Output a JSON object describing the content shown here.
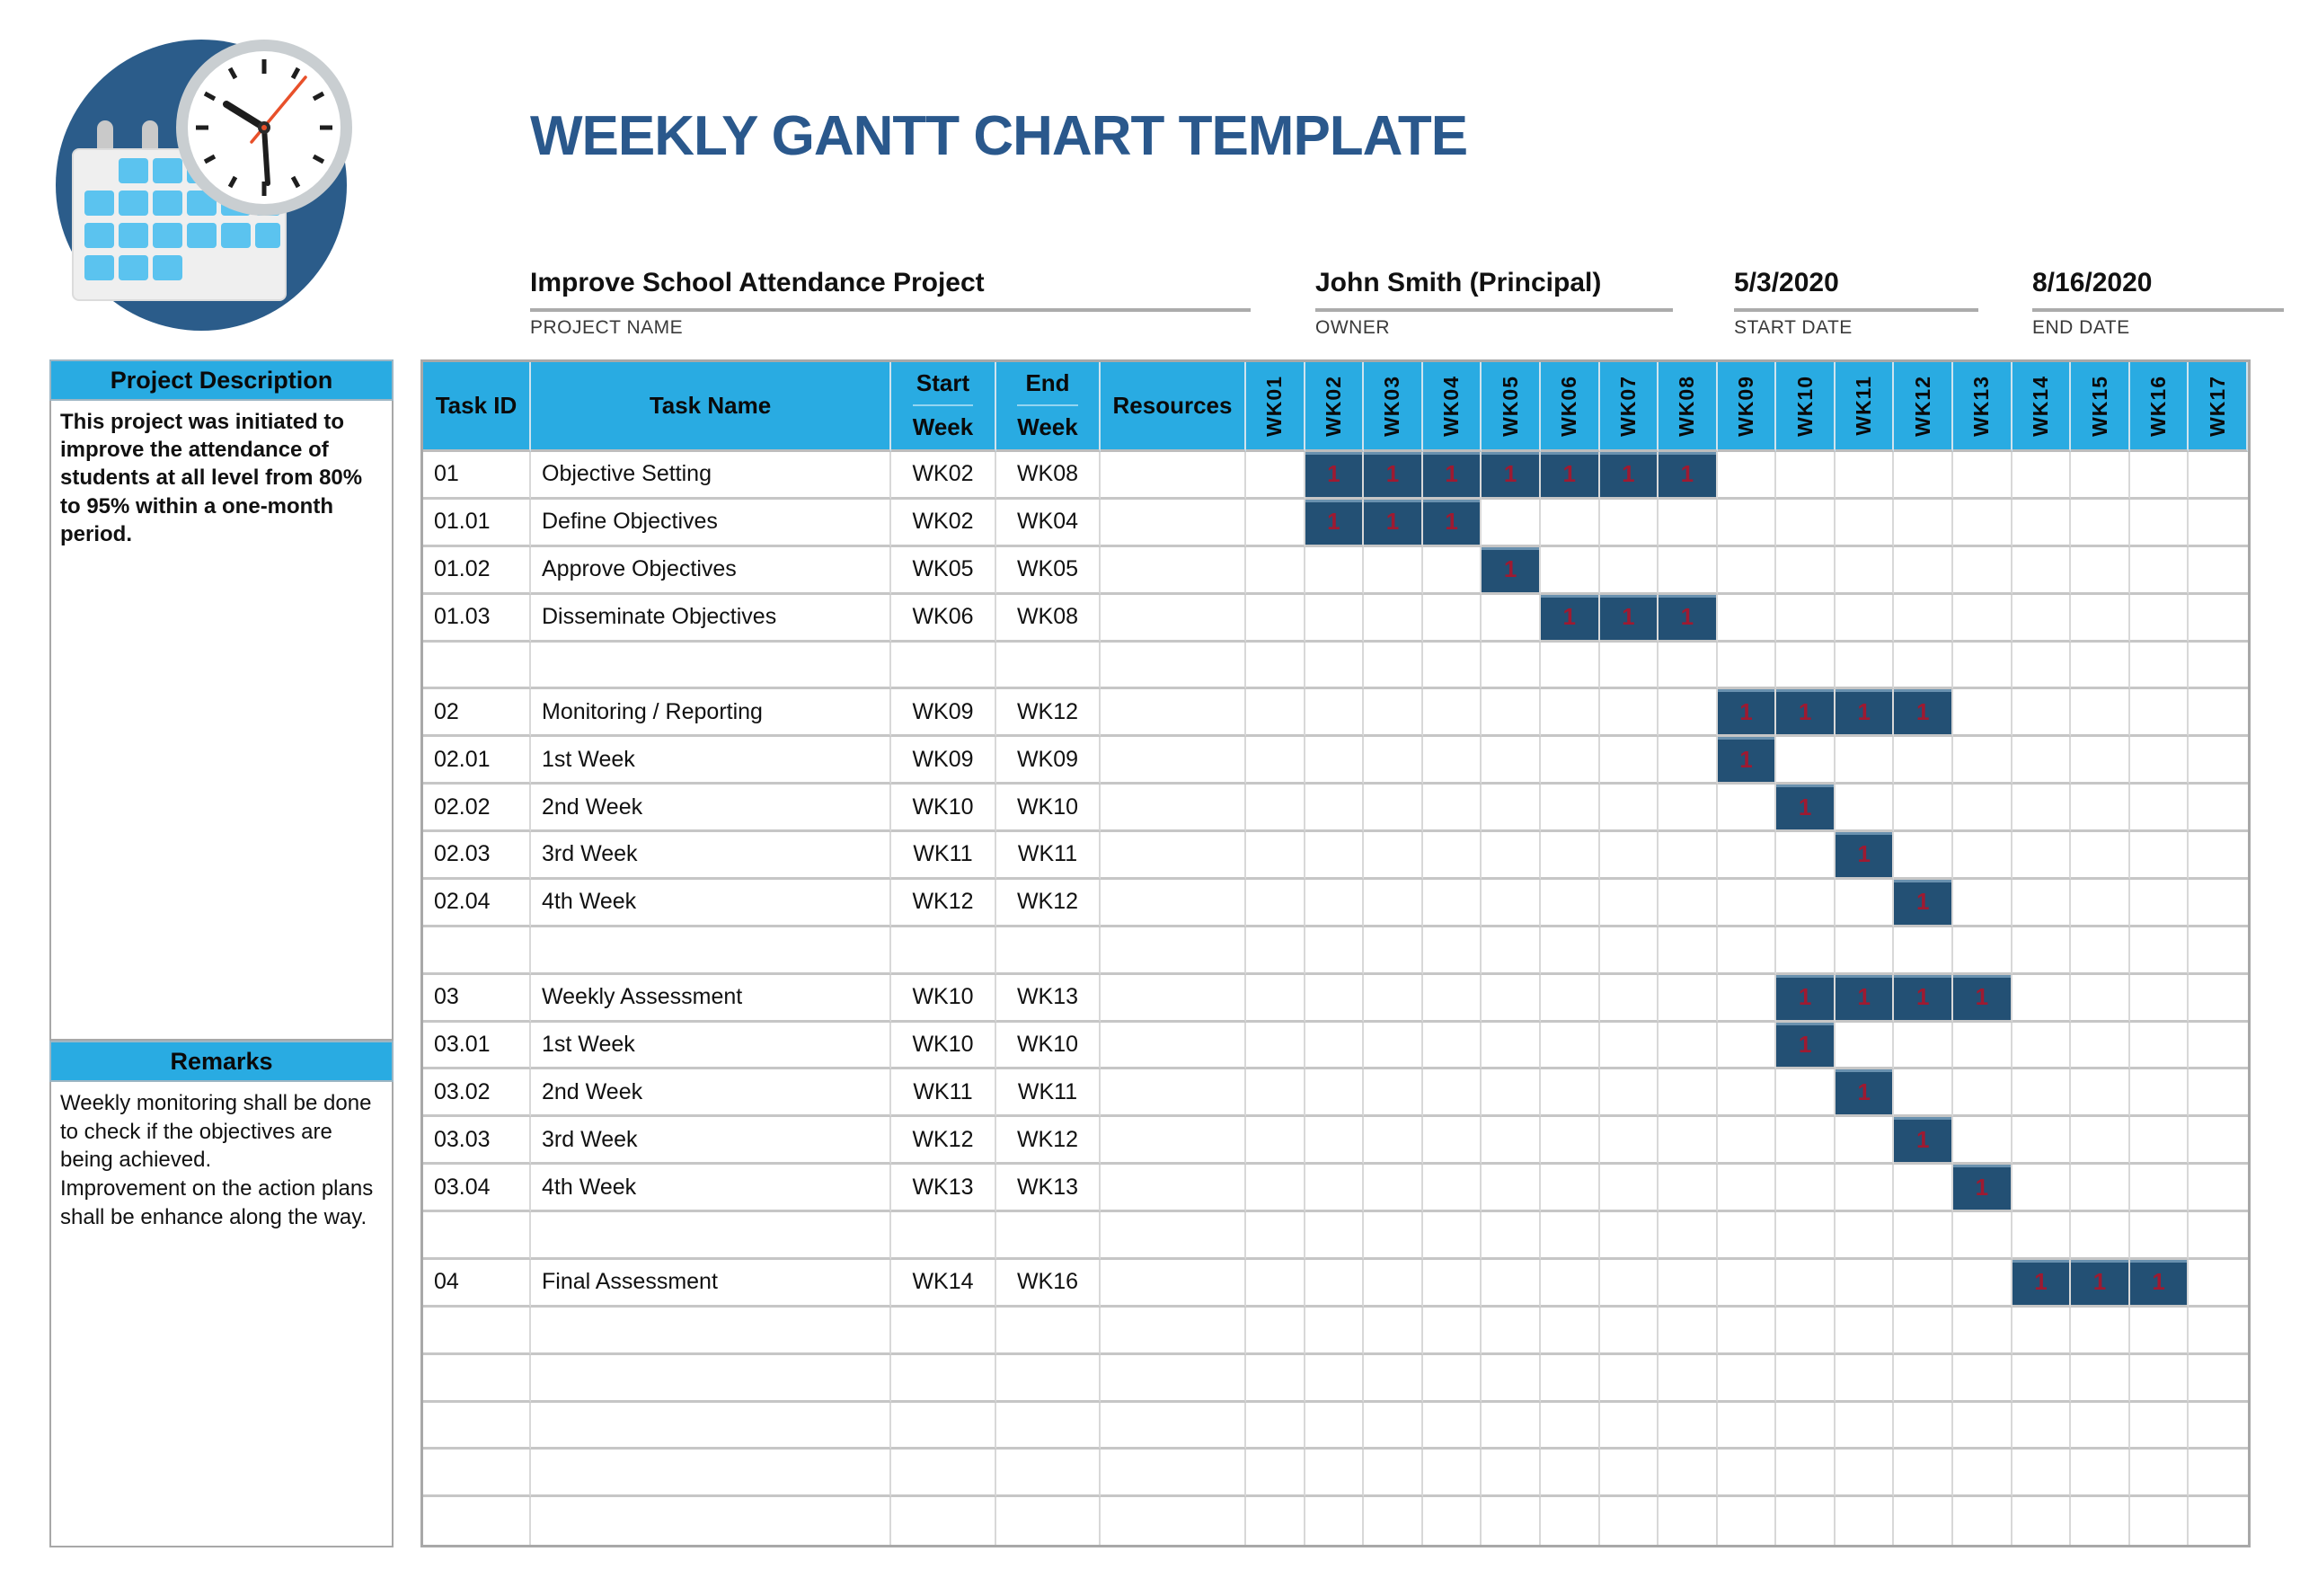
{
  "header": {
    "title": "WEEKLY GANTT CHART TEMPLATE"
  },
  "meta": {
    "project_name": {
      "value": "Improve School Attendance Project",
      "label": "PROJECT NAME"
    },
    "owner": {
      "value": "John Smith (Principal)",
      "label": "OWNER"
    },
    "start_date": {
      "value": "5/3/2020",
      "label": "START DATE"
    },
    "end_date": {
      "value": "8/16/2020",
      "label": "END DATE"
    }
  },
  "sidebar": {
    "description_title": "Project Description",
    "description_text": "This project was initiated to improve the attendance of students at all level from 80% to 95% within a one-month period.",
    "remarks_title": "Remarks",
    "remarks_lines": [
      "Weekly monitoring shall be done to check if the objectives are being achieved.",
      "Improvement on the action plans shall be enhance along the way."
    ]
  },
  "table": {
    "columns": [
      {
        "title": "Task ID"
      },
      {
        "title": "Task Name"
      },
      {
        "title": "Start",
        "subtitle": "Week"
      },
      {
        "title": "End",
        "subtitle": "Week"
      },
      {
        "title": "Resources"
      }
    ],
    "weeks": [
      "WK01",
      "WK02",
      "WK03",
      "WK04",
      "WK05",
      "WK06",
      "WK07",
      "WK08",
      "WK09",
      "WK10",
      "WK11",
      "WK12",
      "WK13",
      "WK14",
      "WK15",
      "WK16",
      "WK17"
    ],
    "bar_value": "1",
    "rows": [
      {
        "id": "01",
        "name": "Objective Setting",
        "start": "WK02",
        "end": "WK08",
        "resources": "",
        "bars": [
          2,
          3,
          4,
          5,
          6,
          7,
          8
        ]
      },
      {
        "id": "01.01",
        "name": "Define Objectives",
        "start": "WK02",
        "end": "WK04",
        "resources": "",
        "bars": [
          2,
          3,
          4
        ]
      },
      {
        "id": "01.02",
        "name": "Approve Objectives",
        "start": "WK05",
        "end": "WK05",
        "resources": "",
        "bars": [
          5
        ]
      },
      {
        "id": "01.03",
        "name": "Disseminate Objectives",
        "start": "WK06",
        "end": "WK08",
        "resources": "",
        "bars": [
          6,
          7,
          8
        ]
      },
      {
        "id": "",
        "name": "",
        "start": "",
        "end": "",
        "resources": "",
        "bars": []
      },
      {
        "id": "02",
        "name": "Monitoring / Reporting",
        "start": "WK09",
        "end": "WK12",
        "resources": "",
        "bars": [
          9,
          10,
          11,
          12
        ]
      },
      {
        "id": "02.01",
        "name": "1st Week",
        "start": "WK09",
        "end": "WK09",
        "resources": "",
        "bars": [
          9
        ]
      },
      {
        "id": "02.02",
        "name": "2nd Week",
        "start": "WK10",
        "end": "WK10",
        "resources": "",
        "bars": [
          10
        ]
      },
      {
        "id": "02.03",
        "name": "3rd Week",
        "start": "WK11",
        "end": "WK11",
        "resources": "",
        "bars": [
          11
        ]
      },
      {
        "id": "02.04",
        "name": "4th Week",
        "start": "WK12",
        "end": "WK12",
        "resources": "",
        "bars": [
          12
        ]
      },
      {
        "id": "",
        "name": "",
        "start": "",
        "end": "",
        "resources": "",
        "bars": []
      },
      {
        "id": "03",
        "name": "Weekly Assessment",
        "start": "WK10",
        "end": "WK13",
        "resources": "",
        "bars": [
          10,
          11,
          12,
          13
        ]
      },
      {
        "id": "03.01",
        "name": "1st Week",
        "start": "WK10",
        "end": "WK10",
        "resources": "",
        "bars": [
          10
        ]
      },
      {
        "id": "03.02",
        "name": "2nd Week",
        "start": "WK11",
        "end": "WK11",
        "resources": "",
        "bars": [
          11
        ]
      },
      {
        "id": "03.03",
        "name": "3rd Week",
        "start": "WK12",
        "end": "WK12",
        "resources": "",
        "bars": [
          12
        ]
      },
      {
        "id": "03.04",
        "name": "4th Week",
        "start": "WK13",
        "end": "WK13",
        "resources": "",
        "bars": [
          13
        ]
      },
      {
        "id": "",
        "name": "",
        "start": "",
        "end": "",
        "resources": "",
        "bars": []
      },
      {
        "id": "04",
        "name": "Final Assessment",
        "start": "WK14",
        "end": "WK16",
        "resources": "",
        "bars": [
          14,
          15,
          16
        ]
      },
      {
        "id": "",
        "name": "",
        "start": "",
        "end": "",
        "resources": "",
        "bars": []
      },
      {
        "id": "",
        "name": "",
        "start": "",
        "end": "",
        "resources": "",
        "bars": []
      },
      {
        "id": "",
        "name": "",
        "start": "",
        "end": "",
        "resources": "",
        "bars": []
      },
      {
        "id": "",
        "name": "",
        "start": "",
        "end": "",
        "resources": "",
        "bars": []
      },
      {
        "id": "",
        "name": "",
        "start": "",
        "end": "",
        "resources": "",
        "bars": []
      }
    ]
  },
  "chart_data": {
    "type": "table",
    "title": "WEEKLY GANTT CHART TEMPLATE",
    "project": "Improve School Attendance Project",
    "owner": "John Smith (Principal)",
    "start_date": "5/3/2020",
    "end_date": "8/16/2020",
    "x_categories": [
      "WK01",
      "WK02",
      "WK03",
      "WK04",
      "WK05",
      "WK06",
      "WK07",
      "WK08",
      "WK09",
      "WK10",
      "WK11",
      "WK12",
      "WK13",
      "WK14",
      "WK15",
      "WK16",
      "WK17"
    ],
    "tasks": [
      {
        "id": "01",
        "name": "Objective Setting",
        "start_week": "WK02",
        "end_week": "WK08",
        "bar_weeks": [
          "WK02",
          "WK03",
          "WK04",
          "WK05",
          "WK06",
          "WK07",
          "WK08"
        ]
      },
      {
        "id": "01.01",
        "name": "Define Objectives",
        "start_week": "WK02",
        "end_week": "WK04",
        "bar_weeks": [
          "WK02",
          "WK03",
          "WK04"
        ]
      },
      {
        "id": "01.02",
        "name": "Approve Objectives",
        "start_week": "WK05",
        "end_week": "WK05",
        "bar_weeks": [
          "WK05"
        ]
      },
      {
        "id": "01.03",
        "name": "Disseminate Objectives",
        "start_week": "WK06",
        "end_week": "WK08",
        "bar_weeks": [
          "WK06",
          "WK07",
          "WK08"
        ]
      },
      {
        "id": "02",
        "name": "Monitoring / Reporting",
        "start_week": "WK09",
        "end_week": "WK12",
        "bar_weeks": [
          "WK09",
          "WK10",
          "WK11",
          "WK12"
        ]
      },
      {
        "id": "02.01",
        "name": "1st Week",
        "start_week": "WK09",
        "end_week": "WK09",
        "bar_weeks": [
          "WK09"
        ]
      },
      {
        "id": "02.02",
        "name": "2nd Week",
        "start_week": "WK10",
        "end_week": "WK10",
        "bar_weeks": [
          "WK10"
        ]
      },
      {
        "id": "02.03",
        "name": "3rd Week",
        "start_week": "WK11",
        "end_week": "WK11",
        "bar_weeks": [
          "WK11"
        ]
      },
      {
        "id": "02.04",
        "name": "4th Week",
        "start_week": "WK12",
        "end_week": "WK12",
        "bar_weeks": [
          "WK12"
        ]
      },
      {
        "id": "03",
        "name": "Weekly Assessment",
        "start_week": "WK10",
        "end_week": "WK13",
        "bar_weeks": [
          "WK10",
          "WK11",
          "WK12",
          "WK13"
        ]
      },
      {
        "id": "03.01",
        "name": "1st Week",
        "start_week": "WK10",
        "end_week": "WK10",
        "bar_weeks": [
          "WK10"
        ]
      },
      {
        "id": "03.02",
        "name": "2nd Week",
        "start_week": "WK11",
        "end_week": "WK11",
        "bar_weeks": [
          "WK11"
        ]
      },
      {
        "id": "03.03",
        "name": "3rd Week",
        "start_week": "WK12",
        "end_week": "WK12",
        "bar_weeks": [
          "WK12"
        ]
      },
      {
        "id": "03.04",
        "name": "4th Week",
        "start_week": "WK13",
        "end_week": "WK13",
        "bar_weeks": [
          "WK13"
        ]
      },
      {
        "id": "04",
        "name": "Final Assessment",
        "start_week": "WK14",
        "end_week": "WK16",
        "bar_weeks": [
          "WK14",
          "WK15",
          "WK16"
        ]
      }
    ],
    "cell_value_in_bars": "1",
    "legend": "none",
    "grid": true
  },
  "colors": {
    "accent_cyan": "#29ABE2",
    "bar_fill": "#235074",
    "bar_text": "#9E1A31",
    "title_blue": "#2A588C"
  }
}
